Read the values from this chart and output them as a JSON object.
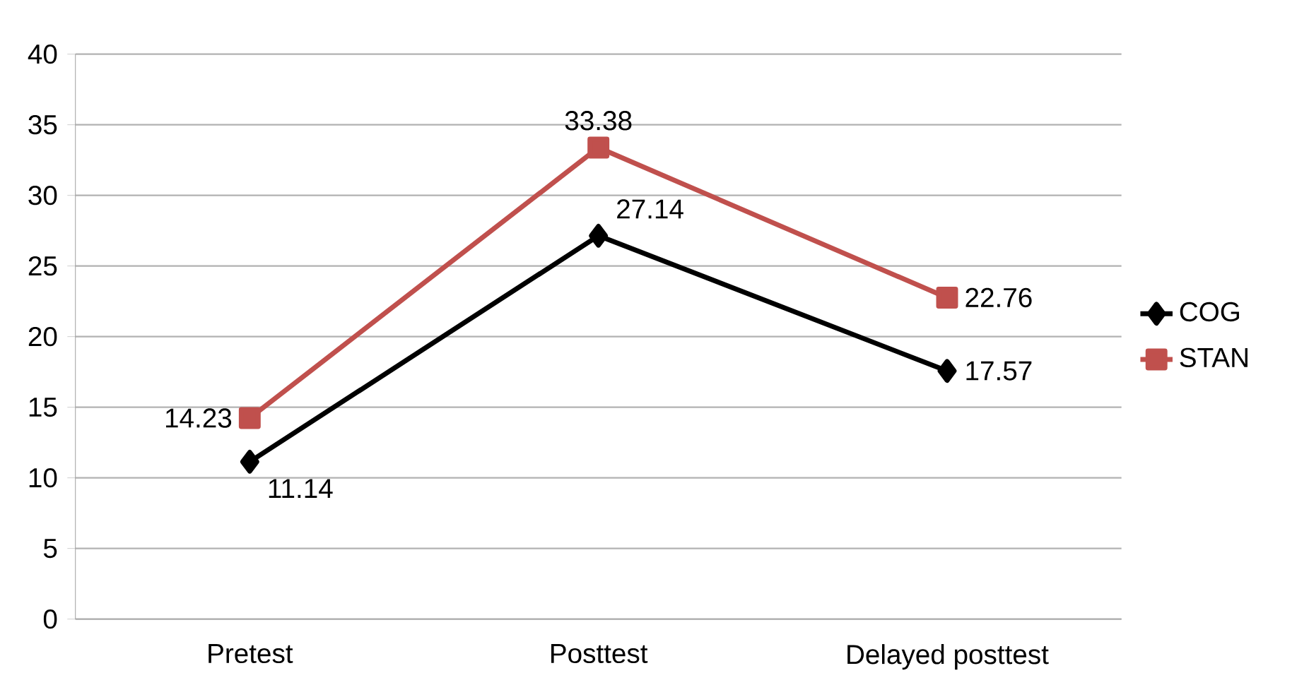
{
  "chart_data": {
    "type": "line",
    "categories": [
      "Pretest",
      "Posttest",
      "Delayed posttest"
    ],
    "series": [
      {
        "name": "COG",
        "color": "#000000",
        "marker": "diamond",
        "values": [
          11.14,
          27.14,
          17.57
        ]
      },
      {
        "name": "STAN",
        "color": "#c0504d",
        "marker": "square",
        "values": [
          14.23,
          33.38,
          22.76
        ]
      }
    ],
    "ylim": [
      0,
      40
    ],
    "yticks": [
      0,
      5,
      10,
      15,
      20,
      25,
      30,
      35,
      40
    ],
    "grid": "y",
    "legend": "right",
    "data_labels": true,
    "line_style": "solid"
  }
}
